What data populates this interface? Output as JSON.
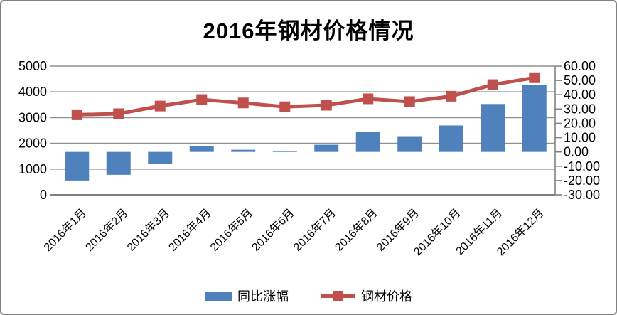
{
  "chart_data": {
    "type": "combo",
    "title": "2016年钢材价格情况",
    "categories": [
      "2016年1月",
      "2016年2月",
      "2016年3月",
      "2016年4月",
      "2016年5月",
      "2016年6月",
      "2016年7月",
      "2016年8月",
      "2016年9月",
      "2016年10月",
      "2016年11月",
      "2016年12月"
    ],
    "series": [
      {
        "name": "同比涨幅",
        "type": "bar",
        "axis": "right",
        "color": "#4f81bd",
        "values": [
          -20,
          -16,
          -8.5,
          4,
          1.5,
          0.5,
          5,
          14,
          11,
          18.5,
          33.5,
          47
        ]
      },
      {
        "name": "钢材价格",
        "type": "line",
        "axis": "left",
        "color": "#c0504d",
        "values": [
          3110,
          3150,
          3450,
          3700,
          3570,
          3420,
          3480,
          3730,
          3620,
          3830,
          4280,
          4550
        ]
      }
    ],
    "left_axis": {
      "min": 0,
      "max": 5000,
      "tick_labels": [
        "0",
        "1000",
        "2000",
        "3000",
        "4000",
        "5000"
      ]
    },
    "right_axis": {
      "min": -30,
      "max": 60,
      "tick_labels": [
        "-30.00",
        "-20.00",
        "-10.00",
        "0.00",
        "10.00",
        "20.00",
        "30.00",
        "40.00",
        "50.00",
        "60.00"
      ]
    },
    "grid": true,
    "legend_position": "bottom"
  },
  "colors": {
    "grid": "#919191",
    "axis": "#808080",
    "border": "#808080",
    "background": "#ffffff"
  }
}
